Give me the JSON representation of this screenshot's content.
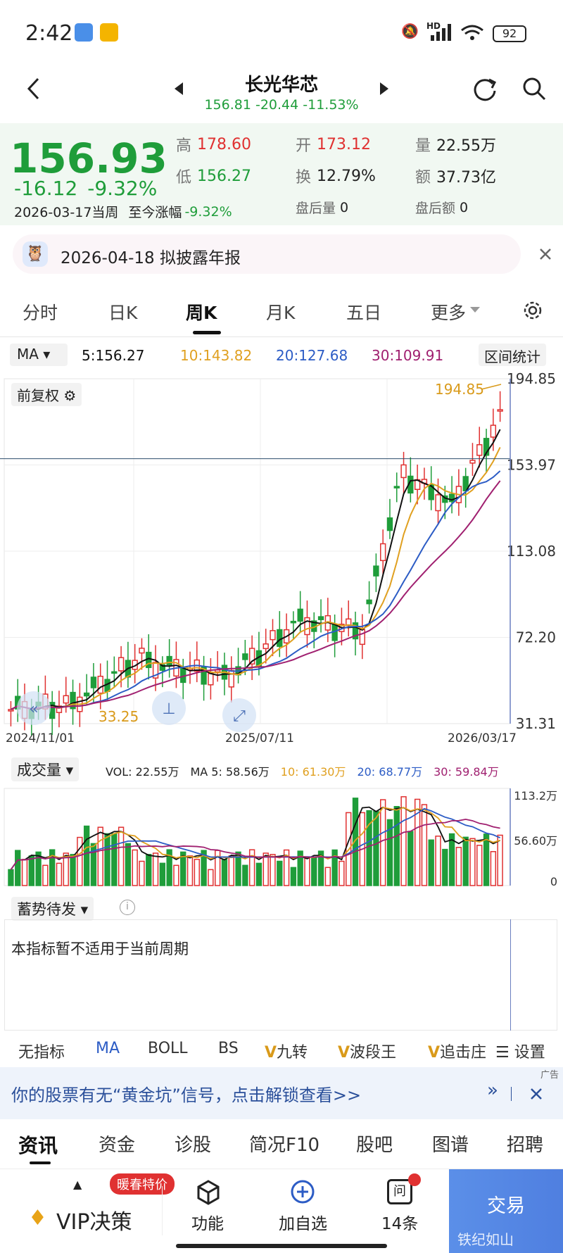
{
  "status_bar": {
    "time": "2:42",
    "battery": "92",
    "network": "HD"
  },
  "header": {
    "title": "长光华芯",
    "subtitle": "156.81  -20.44  -11.53%"
  },
  "quote": {
    "price": "156.93",
    "change": "-16.12",
    "change_pct": "-9.32%",
    "period_label": "2026-03-17当周",
    "ytd_label": "至今涨幅",
    "ytd_value": "-9.32%",
    "high_label": "高",
    "high_value": "178.60",
    "open_label": "开",
    "open_value": "173.12",
    "volume_label": "量",
    "volume_value": "22.55万",
    "low_label": "低",
    "low_value": "156.27",
    "turnover_label": "换",
    "turnover_value": "12.79%",
    "amount_label": "额",
    "amount_value": "37.73亿",
    "after_vol_label": "盘后量",
    "after_vol_value": "0",
    "after_amt_label": "盘后额",
    "after_amt_value": "0"
  },
  "notice": {
    "text": "2026-04-18  拟披露年报"
  },
  "tabs": [
    {
      "label": "分时"
    },
    {
      "label": "日K"
    },
    {
      "label": "周K"
    },
    {
      "label": "月K"
    },
    {
      "label": "五日"
    },
    {
      "label": "更多"
    }
  ],
  "ma_bar": {
    "selector": "MA",
    "ma5": "5:156.27",
    "ma10": "10:143.82",
    "ma20": "20:127.68",
    "ma30": "30:109.91",
    "range_stats": "区间统计"
  },
  "kchart": {
    "adjust_label": "前复权",
    "y_ticks": [
      "194.85",
      "153.97",
      "113.08",
      "72.20",
      "31.31"
    ],
    "x_ticks": [
      "2024/11/01",
      "2025/07/11",
      "2026/03/17"
    ],
    "max_label": "194.85",
    "min_label": "33.25"
  },
  "volume": {
    "selector": "成交量",
    "vol": "VOL: 22.55万",
    "ma5": "MA 5: 58.56万",
    "ma10": "10: 61.30万",
    "ma20": "20: 68.77万",
    "ma30": "30: 59.84万",
    "y_ticks": [
      "113.2万",
      "56.60万",
      "0"
    ]
  },
  "indicator": {
    "selector": "蓄势待发",
    "message": "本指标暂不适用于当前周期"
  },
  "indicator_bar": [
    {
      "label": "无指标"
    },
    {
      "label": "MA"
    },
    {
      "label": "BOLL"
    },
    {
      "label": "BS"
    },
    {
      "label": "九转"
    },
    {
      "label": "波段王"
    },
    {
      "label": "追击庄"
    },
    {
      "label": "设置"
    }
  ],
  "ad": {
    "text": "你的股票有无“黄金坑”信号，点击解锁查看>>",
    "tag": "广告"
  },
  "news_tabs": [
    {
      "label": "资讯"
    },
    {
      "label": "资金"
    },
    {
      "label": "诊股"
    },
    {
      "label": "简况F10"
    },
    {
      "label": "股吧"
    },
    {
      "label": "图谱"
    },
    {
      "label": "招聘"
    }
  ],
  "bottom_bar": {
    "vip_badge": "暖春特价",
    "vip": "VIP决策",
    "func": "功能",
    "add": "加自选",
    "ask": "14条",
    "ask_icon_text": "问",
    "trade": "交易",
    "watermark": "雪球：铁纪如山"
  },
  "colors": {
    "up": "#e03131",
    "down": "#1f9d3a",
    "ma5": "#111111",
    "ma10": "#e0a020",
    "ma20": "#2c5cc5",
    "ma30": "#a02070"
  }
}
